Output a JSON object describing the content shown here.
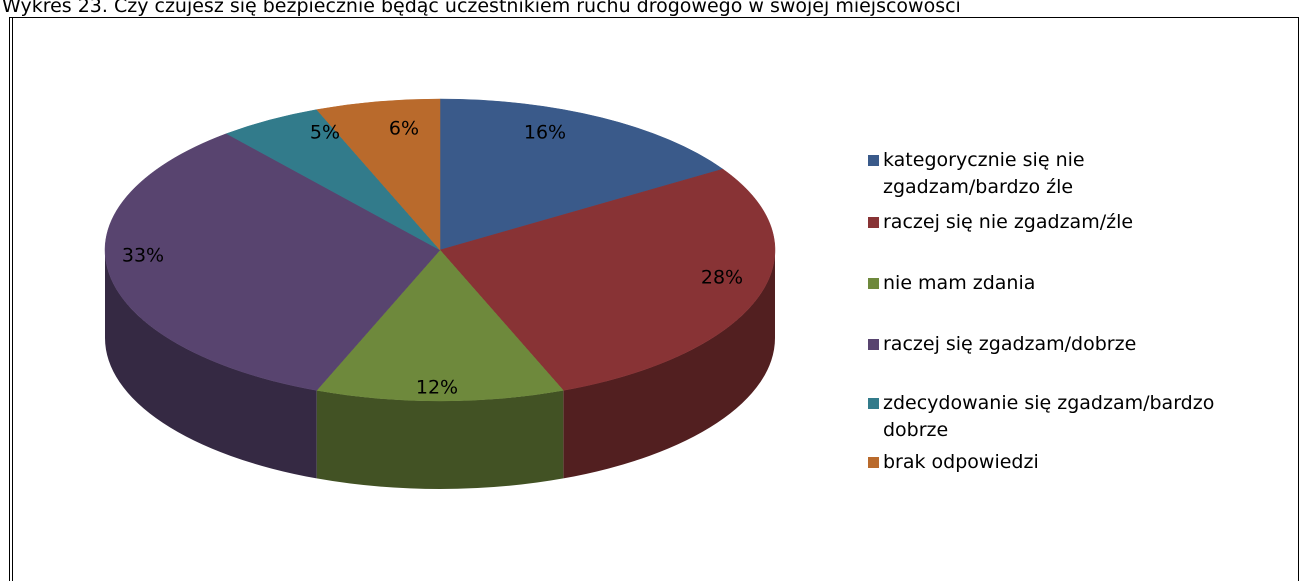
{
  "chart_data": {
    "type": "pie",
    "title": "Wykres 23. Czy czujesz się bezpiecznie będąc uczestnikiem ruchu drogowego w swojej miejscowości",
    "categories": [
      "kategorycznie się nie zgadzam/bardzo źle",
      "raczej się nie zgadzam/źle",
      "nie mam zdania",
      "raczej się zgadzam/dobrze",
      "zdecydowanie się zgadzam/bardzo dobrze",
      "brak odpowiedzi"
    ],
    "values": [
      16,
      28,
      12,
      33,
      5,
      6
    ],
    "value_labels": [
      "16%",
      "28%",
      "12%",
      "33%",
      "5%",
      "6%"
    ],
    "colors": [
      "#3a5a8a",
      "#883335",
      "#6e893c",
      "#58446f",
      "#327b8b",
      "#b96a2c"
    ],
    "legend": "right"
  }
}
